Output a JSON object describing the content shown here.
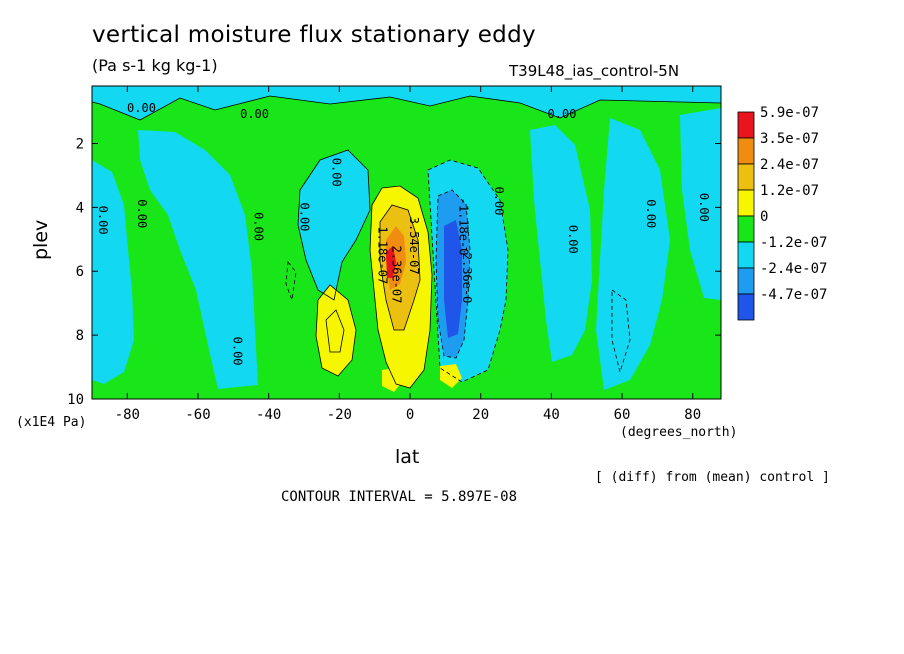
{
  "header": {
    "title": "vertical moisture flux stationary eddy",
    "units": "(Pa s-1 kg kg-1)",
    "run": "T39L48_ias_control-5N"
  },
  "footer": {
    "diff_note": "[ (diff) from (mean) control ]",
    "contour_interval": "CONTOUR INTERVAL = 5.897E-08"
  },
  "chart_data": {
    "type": "heatmap",
    "xlabel": "lat",
    "ylabel": "plev",
    "x_unit": "(degrees_north)",
    "y_unit": "(x1E4 Pa)",
    "xlim": [
      -90,
      88
    ],
    "ylim": [
      10,
      0.2
    ],
    "xticks": [
      -80,
      -60,
      -40,
      -20,
      0,
      20,
      40,
      60,
      80
    ],
    "yticks": [
      2,
      4,
      6,
      8,
      10
    ],
    "colorbar": {
      "labels": [
        "5.9e-07",
        "3.5e-07",
        "2.4e-07",
        "1.2e-07",
        "0",
        "-1.2e-07",
        "-2.4e-07",
        "-4.7e-07"
      ],
      "colors": [
        "#e8141e",
        "#f08c10",
        "#ecc010",
        "#f6f600",
        "#19e619",
        "#12d8f2",
        "#1e9cf0",
        "#1f55e8"
      ]
    },
    "contour_labels": [
      {
        "text": "0.00",
        "lat": -76,
        "plev": 0.9
      },
      {
        "text": "0.00",
        "lat": -44,
        "plev": 1.1
      },
      {
        "text": "0.00",
        "lat": 43,
        "plev": 1.1
      },
      {
        "text": "0.00",
        "lat": -87,
        "plev": 4.4
      },
      {
        "text": "0.00",
        "lat": -76,
        "plev": 4.2
      },
      {
        "text": "0.00",
        "lat": -43,
        "plev": 4.6
      },
      {
        "text": "0.00",
        "lat": -30,
        "plev": 4.3
      },
      {
        "text": "0.00",
        "lat": -21,
        "plev": 2.9
      },
      {
        "text": "0.00",
        "lat": 25,
        "plev": 3.8
      },
      {
        "text": "0.00",
        "lat": 46,
        "plev": 5.0
      },
      {
        "text": "0.00",
        "lat": 68,
        "plev": 4.2
      },
      {
        "text": "0.00",
        "lat": 83,
        "plev": 4.0
      },
      {
        "text": "0.00",
        "lat": -49,
        "plev": 8.5
      },
      {
        "text": "1.18e-07",
        "lat": -8,
        "plev": 5.5
      },
      {
        "text": "2.36e-07",
        "lat": -4,
        "plev": 6.1
      },
      {
        "text": "3.54e-07",
        "lat": 1,
        "plev": 5.2
      },
      {
        "text": "-1.18e-0",
        "lat": 15,
        "plev": 4.6
      },
      {
        "text": "-2.36e-0",
        "lat": 16,
        "plev": 6.1
      }
    ]
  }
}
